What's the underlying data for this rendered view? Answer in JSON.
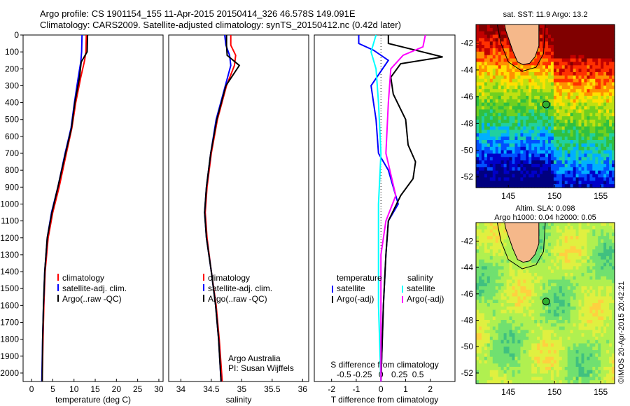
{
  "header": {
    "line1": "Argo profile: CS 1901154_155 11-Apr-2015 20150414_326 46.578S 149.091E",
    "line2": "Climatology: CARS2009. Satellite-adjusted climatology: synTS_20150412.nc (0.42d later)"
  },
  "colors": {
    "climatology": "#ff0000",
    "satellite": "#0000ff",
    "argo": "#000000",
    "salinity_sat": "#00ffff",
    "salinity_argo": "#ff00ff"
  },
  "chart_data": [
    {
      "type": "line",
      "xlabel": "temperature (deg C)",
      "ylim": [
        0,
        2050
      ],
      "xlim": [
        -2,
        31
      ],
      "yticks": [
        0,
        100,
        200,
        300,
        400,
        500,
        600,
        700,
        800,
        900,
        1000,
        1100,
        1200,
        1300,
        1400,
        1500,
        1600,
        1700,
        1800,
        1900,
        2000
      ],
      "xticks": [
        0,
        5,
        10,
        15,
        20,
        25,
        30
      ],
      "legend": [
        "climatology",
        "satellite-adj. clim.",
        "Argo(..raw -QC)"
      ],
      "series": [
        {
          "name": "climatology",
          "color": "#ff0000",
          "points": [
            [
              12.9,
              0
            ],
            [
              12.8,
              100
            ],
            [
              12.5,
              150
            ],
            [
              11.6,
              250
            ],
            [
              10.4,
              400
            ],
            [
              9.5,
              550
            ],
            [
              8.2,
              700
            ],
            [
              6.5,
              900
            ],
            [
              5.0,
              1050
            ],
            [
              3.9,
              1200
            ],
            [
              3.2,
              1400
            ],
            [
              2.9,
              1600
            ],
            [
              2.7,
              1800
            ],
            [
              2.5,
              2050
            ]
          ]
        },
        {
          "name": "satellite-adj. clim.",
          "color": "#0000ff",
          "points": [
            [
              11.9,
              0
            ],
            [
              11.8,
              100
            ],
            [
              11.6,
              160
            ],
            [
              11.0,
              250
            ],
            [
              10.1,
              400
            ],
            [
              9.3,
              550
            ],
            [
              7.9,
              700
            ],
            [
              6.2,
              900
            ],
            [
              4.7,
              1050
            ],
            [
              3.7,
              1200
            ],
            [
              3.1,
              1400
            ],
            [
              2.8,
              1600
            ],
            [
              2.6,
              1800
            ],
            [
              2.4,
              2050
            ]
          ]
        },
        {
          "name": "Argo(..raw -QC)",
          "color": "#000000",
          "points": [
            [
              13.2,
              0
            ],
            [
              13.1,
              100
            ],
            [
              11.7,
              160
            ],
            [
              11.3,
              250
            ],
            [
              10.2,
              400
            ],
            [
              9.4,
              550
            ],
            [
              8.0,
              700
            ],
            [
              6.2,
              900
            ],
            [
              4.8,
              1050
            ],
            [
              3.7,
              1200
            ],
            [
              3.1,
              1400
            ],
            [
              2.8,
              1600
            ],
            [
              2.6,
              1800
            ],
            [
              2.5,
              2050
            ]
          ]
        }
      ]
    },
    {
      "type": "line",
      "xlabel": "salinity",
      "ylim": [
        0,
        2050
      ],
      "xlim": [
        33.8,
        36.1
      ],
      "xticks": [
        34,
        34.5,
        35,
        35.5,
        36
      ],
      "legend": [
        "climatology",
        "satellite-adj. clim.",
        "Argo(..raw -QC)"
      ],
      "annotation": [
        "Argo Australia",
        "PI: Susan Wijffels"
      ],
      "series": [
        {
          "name": "climatology",
          "color": "#ff0000",
          "points": [
            [
              34.82,
              0
            ],
            [
              34.82,
              60
            ],
            [
              34.9,
              120
            ],
            [
              34.88,
              180
            ],
            [
              34.75,
              300
            ],
            [
              34.6,
              500
            ],
            [
              34.5,
              700
            ],
            [
              34.43,
              900
            ],
            [
              34.4,
              1050
            ],
            [
              34.43,
              1200
            ],
            [
              34.5,
              1400
            ],
            [
              34.58,
              1600
            ],
            [
              34.63,
              1800
            ],
            [
              34.68,
              2050
            ]
          ]
        },
        {
          "name": "satellite-adj. clim.",
          "color": "#0000ff",
          "points": [
            [
              34.72,
              0
            ],
            [
              34.74,
              60
            ],
            [
              34.8,
              120
            ],
            [
              34.82,
              180
            ],
            [
              34.73,
              300
            ],
            [
              34.58,
              500
            ],
            [
              34.49,
              700
            ],
            [
              34.42,
              900
            ],
            [
              34.39,
              1050
            ],
            [
              34.42,
              1200
            ],
            [
              34.5,
              1400
            ],
            [
              34.57,
              1600
            ],
            [
              34.62,
              1800
            ],
            [
              34.66,
              2050
            ]
          ]
        },
        {
          "name": "Argo(..raw -QC)",
          "color": "#000000",
          "points": [
            [
              34.75,
              0
            ],
            [
              34.75,
              60
            ],
            [
              34.76,
              120
            ],
            [
              34.96,
              180
            ],
            [
              34.74,
              300
            ],
            [
              34.59,
              500
            ],
            [
              34.49,
              700
            ],
            [
              34.42,
              900
            ],
            [
              34.39,
              1050
            ],
            [
              34.42,
              1200
            ],
            [
              34.5,
              1400
            ],
            [
              34.57,
              1600
            ],
            [
              34.62,
              1800
            ],
            [
              34.66,
              2050
            ]
          ]
        }
      ]
    },
    {
      "type": "line",
      "xlabel": "T difference from climatology",
      "toplabel": "S difference from climatology",
      "ylim": [
        0,
        2050
      ],
      "xlim": [
        -2.7,
        3.0
      ],
      "xticks": [
        -2,
        -1,
        0,
        1,
        2
      ],
      "top_xticks": [
        "-0.5",
        "-0.25",
        "0",
        "0.25",
        "0.5"
      ],
      "legend_titles": [
        "temperature",
        "salinity"
      ],
      "legend_left": [
        "satellite",
        "Argo(-adj)"
      ],
      "legend_right": [
        "satellite",
        "Argo(-adj)"
      ],
      "series": [
        {
          "name": "temperature satellite",
          "color": "#0000ff",
          "points": [
            [
              -0.9,
              0
            ],
            [
              -0.9,
              50
            ],
            [
              -0.3,
              90
            ],
            [
              0.3,
              150
            ],
            [
              -0.4,
              300
            ],
            [
              -0.3,
              400
            ],
            [
              -0.2,
              500
            ],
            [
              -0.1,
              700
            ],
            [
              0.3,
              800
            ],
            [
              0.5,
              900
            ],
            [
              0.7,
              1000
            ],
            [
              0.3,
              1100
            ],
            [
              0.2,
              1300
            ],
            [
              0.1,
              1600
            ],
            [
              0.0,
              2050
            ]
          ]
        },
        {
          "name": "temperature Argo",
          "color": "#000000",
          "points": [
            [
              0.3,
              0
            ],
            [
              0.3,
              50
            ],
            [
              1.4,
              90
            ],
            [
              2.5,
              130
            ],
            [
              0.8,
              170
            ],
            [
              0.4,
              250
            ],
            [
              0.5,
              350
            ],
            [
              1.0,
              500
            ],
            [
              1.1,
              650
            ],
            [
              1.4,
              750
            ],
            [
              1.3,
              850
            ],
            [
              0.8,
              950
            ],
            [
              0.3,
              1100
            ],
            [
              0.2,
              1300
            ],
            [
              0.1,
              1600
            ],
            [
              0.0,
              2050
            ]
          ]
        },
        {
          "name": "salinity satellite",
          "color": "#00ffff",
          "points": [
            [
              -0.2,
              0
            ],
            [
              -0.3,
              50
            ],
            [
              -0.4,
              100
            ],
            [
              -0.2,
              200
            ],
            [
              -0.1,
              400
            ],
            [
              0.0,
              700
            ],
            [
              -0.1,
              1000
            ],
            [
              -0.1,
              1300
            ],
            [
              -0.1,
              1600
            ],
            [
              0.0,
              2050
            ]
          ]
        },
        {
          "name": "salinity Argo",
          "color": "#ff00ff",
          "points": [
            [
              1.8,
              0
            ],
            [
              1.7,
              70
            ],
            [
              0.9,
              120
            ],
            [
              0.4,
              200
            ],
            [
              0.3,
              400
            ],
            [
              0.2,
              700
            ],
            [
              0.6,
              950
            ],
            [
              0.2,
              1100
            ],
            [
              0.0,
              1300
            ],
            [
              0.0,
              1600
            ],
            [
              0.0,
              2050
            ]
          ]
        }
      ]
    },
    {
      "type": "heatmap",
      "title": "sat. SST: 11.9 Argo: 13.2",
      "xticks": [
        145,
        150,
        155
      ],
      "yticks": [
        -42,
        -44,
        -46,
        -48,
        -50,
        -52
      ],
      "xlim": [
        141.5,
        156.5
      ],
      "ylim": [
        -52.8,
        -40.6
      ],
      "float_position": [
        149.09,
        -46.58
      ]
    },
    {
      "type": "heatmap",
      "title1": "Altim. SLA: 0.098",
      "title2": "Argo h1000: 0.04 h2000: 0.05",
      "xticks": [
        145,
        150,
        155
      ],
      "yticks": [
        -42,
        -44,
        -46,
        -48,
        -50,
        -52
      ],
      "xlim": [
        141.5,
        156.5
      ],
      "ylim": [
        -52.8,
        -40.6
      ],
      "float_position": [
        149.09,
        -46.58
      ]
    }
  ],
  "credit": "©IMOS 20-Apr-2015 20:42:21"
}
